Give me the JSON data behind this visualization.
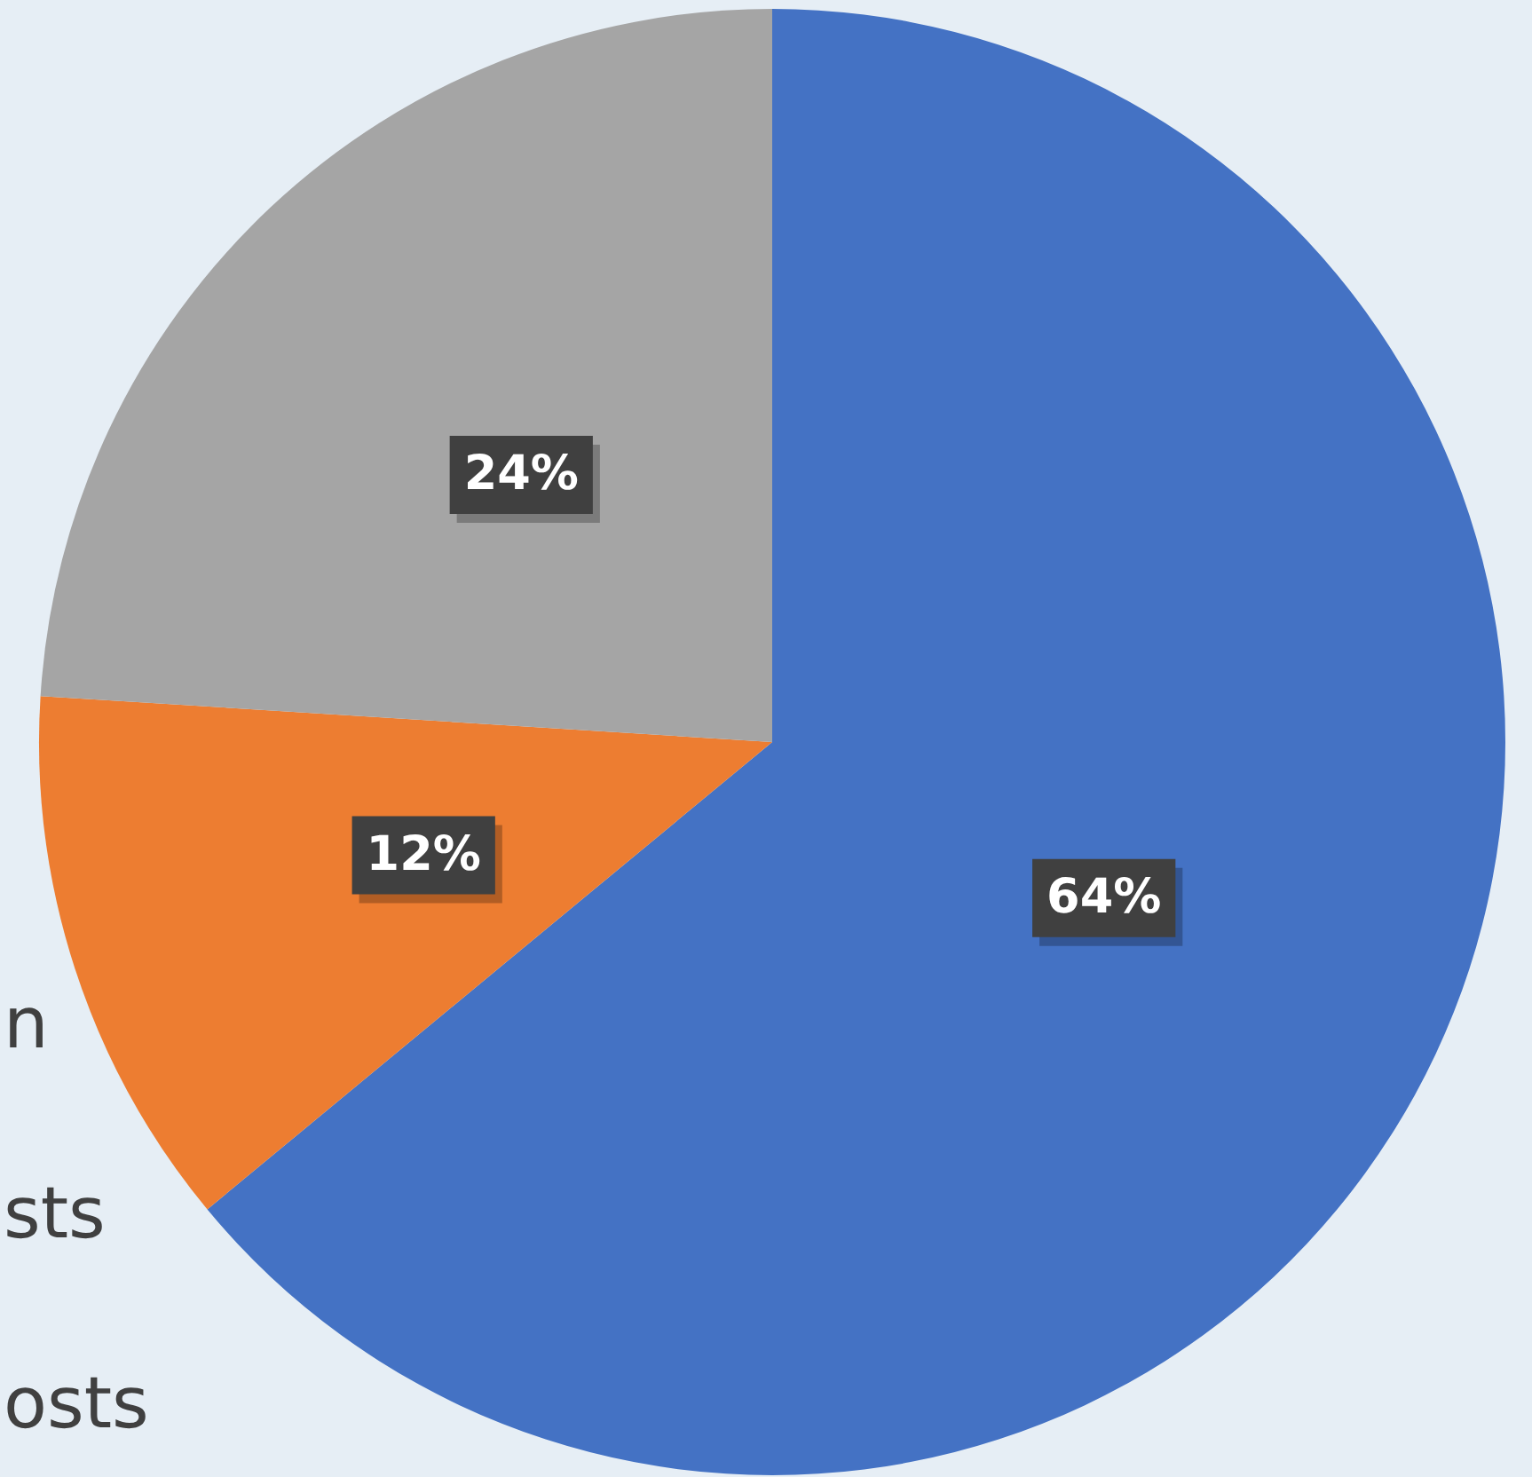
{
  "chart_data": {
    "type": "pie",
    "categories": [
      null,
      null,
      null
    ],
    "values": [
      64,
      12,
      24
    ],
    "colors": [
      "#4472c4",
      "#ed7d31",
      "#a5a5a5"
    ],
    "value_labels": [
      "64%",
      "12%",
      "24%"
    ],
    "annotations": [
      "n",
      "sts",
      "osts"
    ]
  }
}
